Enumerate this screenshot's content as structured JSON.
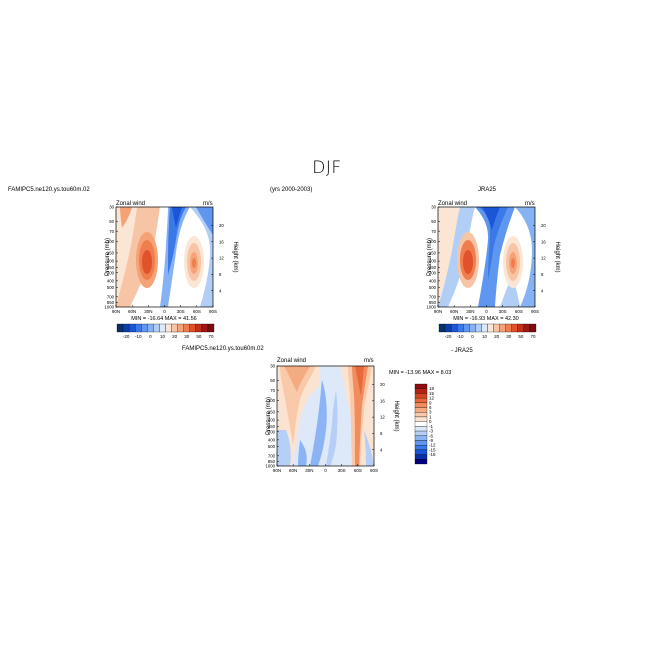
{
  "title": "DJF",
  "period_label": "(yrs 2000-2003)",
  "colors": {
    "cbar_top": [
      "#08306b",
      "#0b3fa8",
      "#1a56d6",
      "#3b78e8",
      "#5e96f0",
      "#86b2f4",
      "#b1cef7",
      "#dde9f9",
      "#fbe6d6",
      "#f7c5a5",
      "#f5a277",
      "#f07d4d",
      "#e0532a",
      "#c4301a",
      "#a01515",
      "#7a0d0d"
    ],
    "cbar_diff": [
      "#000080",
      "#0b2fa8",
      "#1b52d8",
      "#3b78e8",
      "#6096f0",
      "#8cb4f5",
      "#b5cff8",
      "#dde9f9",
      "#ffffff",
      "#fbe3d2",
      "#f9c9a9",
      "#f5ab82",
      "#f08c5e",
      "#e8683c",
      "#d54522",
      "#b52412",
      "#8f0f0f"
    ]
  },
  "labels": {
    "panel_top_left": "FAMIPC5.ne120.ys.tou60m.02",
    "panel_top_right": "JRA25",
    "panel_diff": "FAMIPC5.ne120.ys.tou60m.02",
    "panel_diff_sub": "- JRA25",
    "var_name": "Zonal wind",
    "units": "m/s",
    "ylabel": "Pressure (mb)",
    "y2label": "Height (km)",
    "stats_left": "MIN = -16.64   MAX = 41.56",
    "stats_right": "MIN = -16.93   MAX = 42.30",
    "stats_diff": "MIN = -13.96   MAX =   8.03"
  },
  "chart_data": [
    {
      "type": "heatmap",
      "name": "Zonal wind",
      "panel": "model",
      "title": "Zonal wind",
      "units": "m/s",
      "x_ticks": [
        "90N",
        "60N",
        "30N",
        "0",
        "30S",
        "60S",
        "90S"
      ],
      "x_values": [
        90,
        60,
        30,
        0,
        -30,
        -60,
        -90
      ],
      "y_ticks": [
        "30",
        "50",
        "70",
        "100",
        "150",
        "200",
        "250",
        "300",
        "400",
        "500",
        "700",
        "850",
        "1000"
      ],
      "y2_ticks": [
        "20",
        "16",
        "12",
        "8",
        "4"
      ],
      "ylabel": "Pressure (mb)",
      "y2label": "Height (km)",
      "min": -16.64,
      "max": 41.56,
      "colorbar_labels": [
        "-20",
        "-10",
        "0",
        "10",
        "20",
        "30",
        "50",
        "70"
      ],
      "jets": [
        {
          "lat": 30,
          "pressure": 200,
          "max": 41.56
        },
        {
          "lat": -45,
          "pressure": 250,
          "max": 34
        }
      ]
    },
    {
      "type": "heatmap",
      "name": "Zonal wind",
      "panel": "obs",
      "title": "Zonal wind",
      "units": "m/s",
      "x_ticks": [
        "90N",
        "60N",
        "30N",
        "0",
        "30S",
        "60S",
        "90S"
      ],
      "x_values": [
        90,
        60,
        30,
        0,
        -30,
        -60,
        -90
      ],
      "y_ticks": [
        "30",
        "50",
        "70",
        "100",
        "150",
        "200",
        "250",
        "300",
        "400",
        "500",
        "700",
        "850",
        "1000"
      ],
      "y2_ticks": [
        "20",
        "16",
        "12",
        "8",
        "4"
      ],
      "ylabel": "Pressure (mb)",
      "y2label": "Height (km)",
      "min": -16.93,
      "max": 42.3,
      "colorbar_labels": [
        "-20",
        "-10",
        "0",
        "10",
        "20",
        "30",
        "50",
        "70"
      ],
      "jets": [
        {
          "lat": 30,
          "pressure": 200,
          "max": 42.3
        },
        {
          "lat": -45,
          "pressure": 250,
          "max": 33
        }
      ]
    },
    {
      "type": "heatmap",
      "name": "Zonal wind",
      "panel": "difference",
      "title": "Zonal wind",
      "units": "m/s",
      "x_ticks": [
        "90N",
        "60N",
        "30N",
        "0",
        "30S",
        "60S",
        "90S"
      ],
      "x_values": [
        90,
        60,
        30,
        0,
        -30,
        -60,
        -90
      ],
      "y_ticks": [
        "30",
        "50",
        "70",
        "100",
        "150",
        "200",
        "250",
        "300",
        "400",
        "500",
        "700",
        "850",
        "1000"
      ],
      "y2_ticks": [
        "20",
        "16",
        "12",
        "8",
        "4"
      ],
      "ylabel": "Pressure (mb)",
      "y2label": "Height (km)",
      "min": -13.96,
      "max": 8.03,
      "colorbar_labels": [
        "18",
        "15",
        "12",
        "9",
        "6",
        "3",
        "1",
        "0",
        "-1",
        "-3",
        "-6",
        "-9",
        "-12",
        "-15",
        "-18"
      ]
    }
  ]
}
